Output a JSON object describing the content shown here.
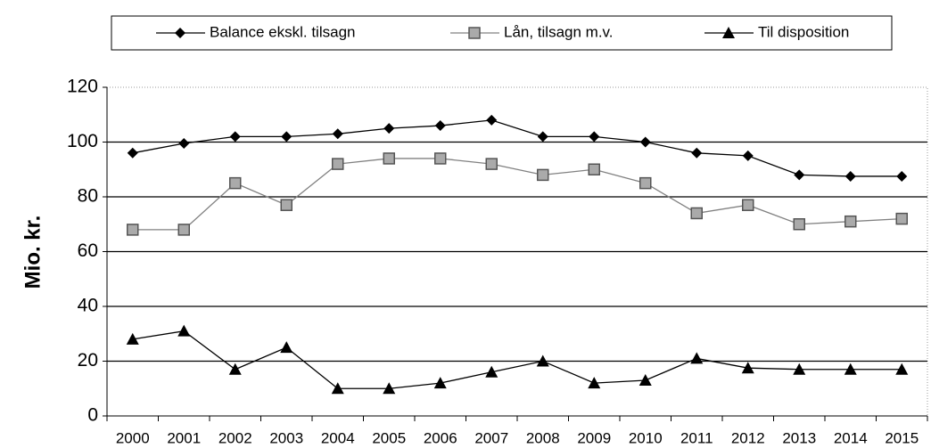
{
  "chart_data": {
    "type": "line",
    "y_label": "Mio. kr.",
    "categories": [
      "2000",
      "2001",
      "2002",
      "2003",
      "2004",
      "2005",
      "2006",
      "2007",
      "2008",
      "2009",
      "2010",
      "2011",
      "2012",
      "2013",
      "2014",
      "2015"
    ],
    "series": [
      {
        "name": "Balance ekskl. tilsagn",
        "color": "#000000",
        "marker": "diamond",
        "values": [
          96,
          99.5,
          102,
          102,
          103,
          105,
          106,
          108,
          102,
          102,
          100,
          96,
          95,
          88,
          87.5,
          87.5
        ]
      },
      {
        "name": "Lån, tilsagn m.v.",
        "color": "#808080",
        "marker": "square",
        "values": [
          68,
          68,
          85,
          77,
          92,
          94,
          94,
          92,
          88,
          90,
          85,
          74,
          77,
          70,
          71,
          72
        ]
      },
      {
        "name": "Til disposition",
        "color": "#000000",
        "marker": "triangle",
        "values": [
          28,
          31,
          17,
          25,
          10,
          10,
          12,
          16,
          20,
          12,
          13,
          21,
          17.5,
          17,
          17,
          17
        ]
      }
    ],
    "ylim": [
      0,
      120
    ],
    "yticks": [
      0,
      20,
      40,
      60,
      80,
      100,
      120
    ],
    "grid": true,
    "legend": "top"
  }
}
